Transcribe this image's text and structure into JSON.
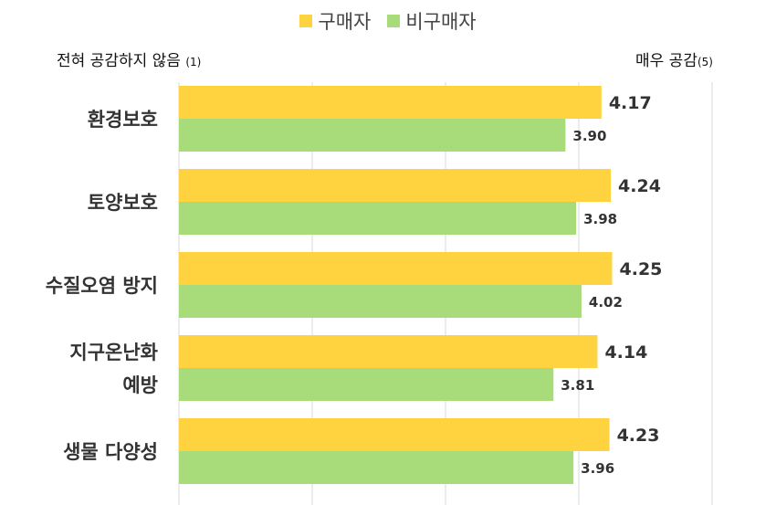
{
  "legend": {
    "buyer_label": "구매자",
    "nonbuyer_label": "비구매자"
  },
  "scale": {
    "left_anchor": "전혀 공감하지 않음",
    "left_anchor_num": "(1)",
    "right_anchor": "매우 공감",
    "right_anchor_num": "(5)"
  },
  "colors": {
    "buyer": "#FFD23F",
    "nonbuyer": "#A8DB7A",
    "grid": "#D9D9D9"
  },
  "chart_data": {
    "type": "bar",
    "orientation": "horizontal",
    "categories": [
      [
        "환경보호"
      ],
      [
        "토양보호"
      ],
      [
        "수질오염 방지"
      ],
      [
        "지구온난화",
        "예방"
      ],
      [
        "생물 다양성"
      ]
    ],
    "series": [
      {
        "name": "구매자",
        "values": [
          4.17,
          4.24,
          4.25,
          4.14,
          4.23
        ]
      },
      {
        "name": "비구매자",
        "values": [
          3.9,
          3.98,
          4.02,
          3.81,
          3.96
        ]
      }
    ],
    "value_labels": [
      [
        "4.17",
        "4.24",
        "4.25",
        "4.14",
        "4.23"
      ],
      [
        "3.90",
        "3.98",
        "4.02",
        "3.81",
        "3.96"
      ]
    ],
    "xlim": [
      1,
      5
    ],
    "grid": true,
    "legend_position": "top-center"
  }
}
